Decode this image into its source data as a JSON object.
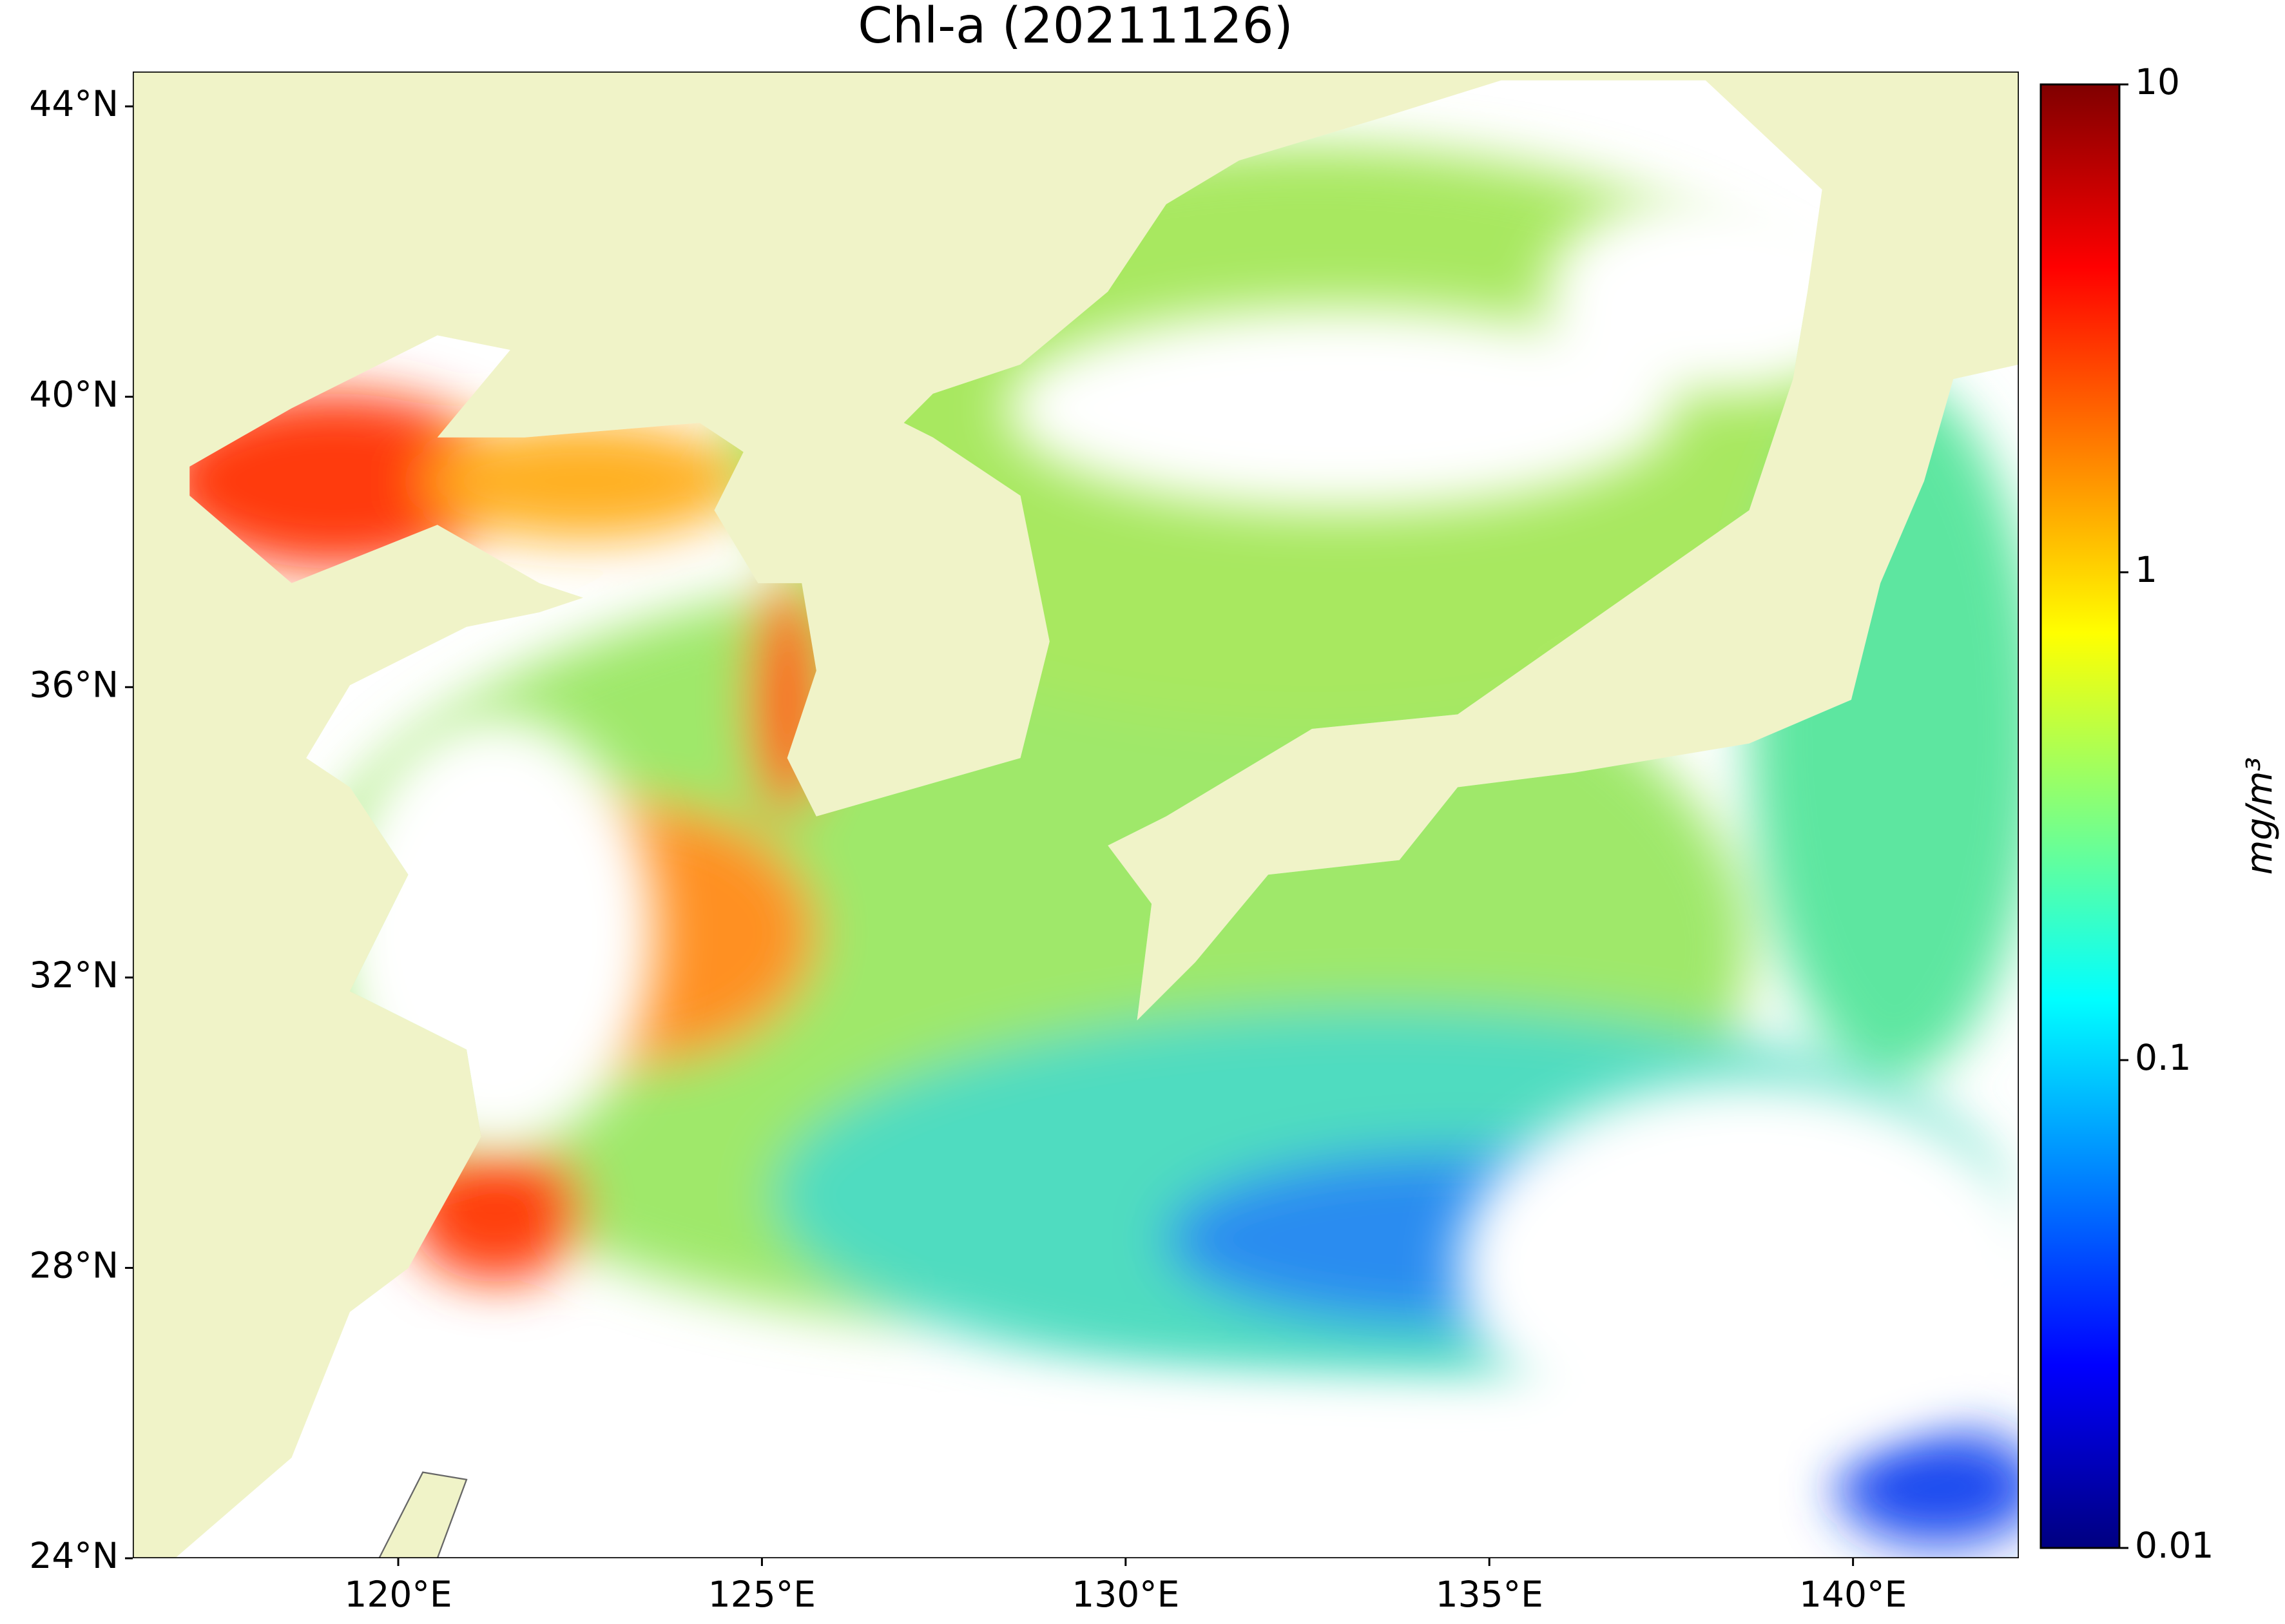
{
  "chart_data": {
    "type": "map",
    "title": "Chl-a (20211126)",
    "xlim": [
      116.35,
      142.28
    ],
    "ylim": [
      24,
      44.48
    ],
    "xticks": [
      {
        "value": 120,
        "label": "120°E"
      },
      {
        "value": 125,
        "label": "125°E"
      },
      {
        "value": 130,
        "label": "130°E"
      },
      {
        "value": 135,
        "label": "135°E"
      },
      {
        "value": 140,
        "label": "140°E"
      }
    ],
    "yticks": [
      {
        "value": 24,
        "label": "24°N"
      },
      {
        "value": 28,
        "label": "28°N"
      },
      {
        "value": 32,
        "label": "32°N"
      },
      {
        "value": 36,
        "label": "36°N"
      },
      {
        "value": 40,
        "label": "40°N"
      },
      {
        "value": 44,
        "label": "44°N"
      }
    ],
    "colorbar": {
      "label": "mg/m³",
      "scale": "log",
      "lim": [
        0.01,
        10
      ],
      "ticks": [
        0.01,
        0.1,
        1,
        10
      ]
    }
  }
}
